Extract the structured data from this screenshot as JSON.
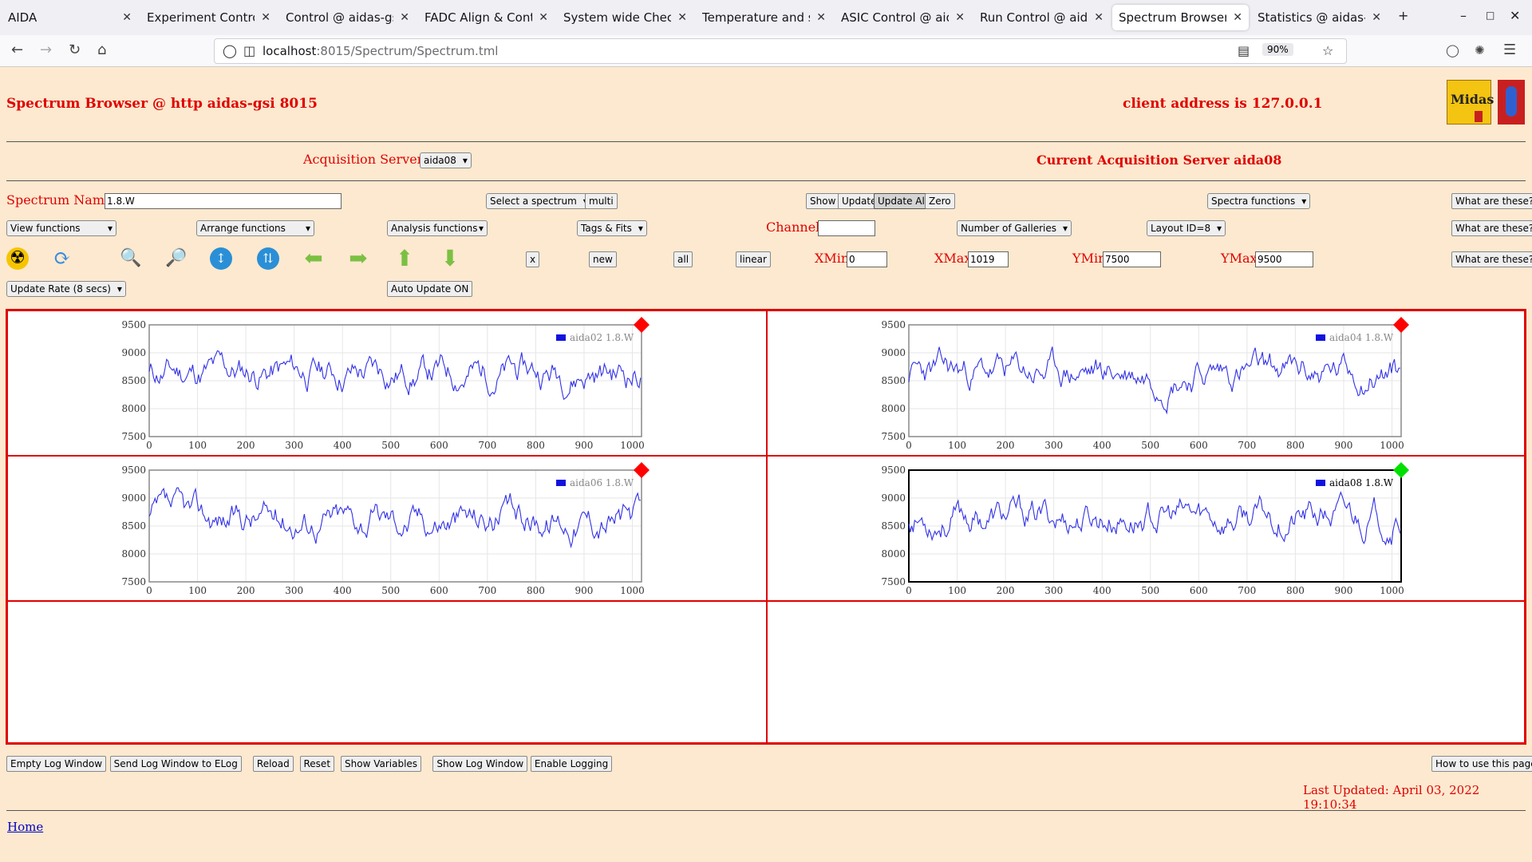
{
  "browser": {
    "tabs": [
      {
        "title": "AIDA"
      },
      {
        "title": "Experiment Control @"
      },
      {
        "title": "Control @ aidas-gsi"
      },
      {
        "title": "FADC Align & Control"
      },
      {
        "title": "System wide Checks"
      },
      {
        "title": "Temperature and stat"
      },
      {
        "title": "ASIC Control @ aidas"
      },
      {
        "title": "Run Control @ aidas-"
      },
      {
        "title": "Spectrum Browser @"
      },
      {
        "title": "Statistics @ aidas-gsi"
      }
    ],
    "active_tab": 8,
    "url_host": "localhost",
    "url_path": ":8015/Spectrum/Spectrum.tml",
    "zoom": "90%"
  },
  "header": {
    "title": "Spectrum Browser @ http aidas-gsi 8015",
    "client_address": "client address is 127.0.0.1",
    "logo_text": "Midas"
  },
  "servers": {
    "label": "Acquisition Servers",
    "selected": "aida08",
    "current": "Current Acquisition Server aida08"
  },
  "controls": {
    "spectrum_name_label": "Spectrum Name:",
    "spectrum_name_value": "1.8.W",
    "select_spectrum": "Select a spectrum",
    "multi": "multi",
    "show": "Show",
    "update": "Update",
    "update_all": "Update All",
    "zero": "Zero",
    "spectra_functions": "Spectra functions",
    "what": "What are these?",
    "view_functions": "View functions",
    "arrange_functions": "Arrange functions",
    "analysis_functions": "Analysis functions",
    "tags_fits": "Tags & Fits",
    "channel_label": "Channel:",
    "channel_value": "",
    "num_galleries": "Number of Galleries",
    "layout_id": "Layout ID=8",
    "x_btn": "x",
    "new_btn": "new",
    "all_btn": "all",
    "linear_btn": "linear",
    "xmin_label": "XMin",
    "xmin": "0",
    "xmax_label": "XMax",
    "xmax": "1019",
    "ymin_label": "YMin",
    "ymin": "7500",
    "ymax_label": "YMax",
    "ymax": "9500",
    "update_rate": "Update Rate (8 secs)",
    "auto_update": "Auto Update ON"
  },
  "icons": [
    "radiation-icon",
    "refresh-icon",
    "zoom-in-icon",
    "zoom-out-icon",
    "expand-vertical-icon",
    "compress-vertical-icon",
    "arrow-left-icon",
    "arrow-right-icon",
    "arrow-up-icon",
    "arrow-down-icon"
  ],
  "footer": {
    "buttons": [
      "Empty Log Window",
      "Send Log Window to ELog",
      "Reload",
      "Reset",
      "Show Variables",
      "Show Log Window",
      "Enable Logging"
    ],
    "how_to": "How to use this page",
    "last_updated": "Last Updated: April 03, 2022 19:10:34",
    "home": "Home"
  },
  "chart_data": [
    {
      "type": "line",
      "legend": "aida02 1.8.W",
      "marker_color": "#ff0000",
      "selected": false,
      "seed": 11,
      "xlim": [
        0,
        1019
      ],
      "ylim": [
        7500,
        9500
      ],
      "xticks": [
        0,
        100,
        200,
        300,
        400,
        500,
        600,
        700,
        800,
        900,
        1000
      ],
      "yticks": [
        7500,
        8000,
        8500,
        9000,
        9500
      ]
    },
    {
      "type": "line",
      "legend": "aida04 1.8.W",
      "marker_color": "#ff0000",
      "selected": false,
      "seed": 23,
      "xlim": [
        0,
        1019
      ],
      "ylim": [
        7500,
        9500
      ],
      "xticks": [
        0,
        100,
        200,
        300,
        400,
        500,
        600,
        700,
        800,
        900,
        1000
      ],
      "yticks": [
        7500,
        8000,
        8500,
        9000,
        9500
      ]
    },
    {
      "type": "line",
      "legend": "aida06 1.8.W",
      "marker_color": "#ff0000",
      "selected": false,
      "seed": 37,
      "xlim": [
        0,
        1019
      ],
      "ylim": [
        7500,
        9500
      ],
      "xticks": [
        0,
        100,
        200,
        300,
        400,
        500,
        600,
        700,
        800,
        900,
        1000
      ],
      "yticks": [
        7500,
        8000,
        8500,
        9000,
        9500
      ]
    },
    {
      "type": "line",
      "legend": "aida08 1.8.W",
      "marker_color": "#00e000",
      "selected": true,
      "seed": 53,
      "xlim": [
        0,
        1019
      ],
      "ylim": [
        7500,
        9500
      ],
      "xticks": [
        0,
        100,
        200,
        300,
        400,
        500,
        600,
        700,
        800,
        900,
        1000
      ],
      "yticks": [
        7500,
        8000,
        8500,
        9000,
        9500
      ]
    }
  ]
}
